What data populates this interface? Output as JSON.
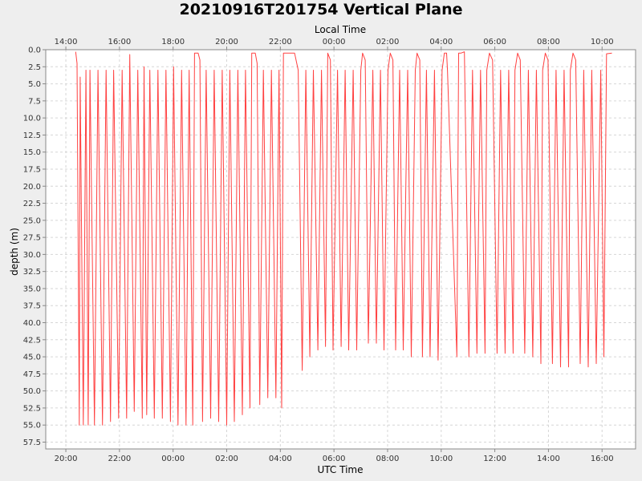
{
  "chart_data": {
    "type": "line",
    "title": "20210916T201754 Vertical Plane",
    "xlabel": "UTC Time",
    "x2label": "Local Time",
    "ylabel": "depth (m)",
    "xlim": [
      "2021-09-16T19:15",
      "2021-09-17T17:15"
    ],
    "ylim": [
      0,
      58.5
    ],
    "y_inverted": true,
    "grid": true,
    "x_ticks": [
      "20:00",
      "22:00",
      "00:00",
      "02:00",
      "04:00",
      "06:00",
      "08:00",
      "10:00",
      "12:00",
      "14:00",
      "16:00"
    ],
    "x2_ticks": [
      "14:00",
      "16:00",
      "18:00",
      "20:00",
      "22:00",
      "00:00",
      "02:00",
      "04:00",
      "06:00",
      "08:00",
      "10:00"
    ],
    "y_ticks": [
      "0.0",
      "2.5",
      "5.0",
      "7.5",
      "10.0",
      "12.5",
      "15.0",
      "17.5",
      "20.0",
      "22.5",
      "25.0",
      "27.5",
      "30.0",
      "32.5",
      "35.0",
      "37.5",
      "40.0",
      "42.5",
      "45.0",
      "47.5",
      "50.0",
      "52.5",
      "55.0",
      "57.5"
    ],
    "series": [
      {
        "color": "#ff4040",
        "x": [
          "2021-09-16T20:22",
          "2021-09-16T20:25",
          "2021-09-16T20:30",
          "2021-09-16T20:32",
          "2021-09-16T20:39",
          "2021-09-16T20:45",
          "2021-09-16T20:50",
          "2021-09-16T20:54",
          "2021-09-16T21:04",
          "2021-09-16T21:12",
          "2021-09-16T21:22",
          "2021-09-16T21:30",
          "2021-09-16T21:40",
          "2021-09-16T21:47",
          "2021-09-16T21:58",
          "2021-09-16T22:06",
          "2021-09-16T22:16",
          "2021-09-16T22:23",
          "2021-09-16T22:33",
          "2021-09-16T22:41",
          "2021-09-16T22:51",
          "2021-09-16T22:55",
          "2021-09-16T23:01",
          "2021-09-16T23:08",
          "2021-09-16T23:18",
          "2021-09-16T23:26",
          "2021-09-16T23:36",
          "2021-09-16T23:44",
          "2021-09-16T23:54",
          "2021-09-17T00:01",
          "2021-09-17T00:11",
          "2021-09-17T00:19",
          "2021-09-17T00:29",
          "2021-09-17T00:36",
          "2021-09-17T00:44",
          "2021-09-17T00:48",
          "2021-09-17T00:56",
          "2021-09-17T01:00",
          "2021-09-17T01:06",
          "2021-09-17T01:14",
          "2021-09-17T01:24",
          "2021-09-17T01:32",
          "2021-09-17T01:42",
          "2021-09-17T01:50",
          "2021-09-17T02:00",
          "2021-09-17T02:07",
          "2021-09-17T02:17",
          "2021-09-17T02:25",
          "2021-09-17T02:35",
          "2021-09-17T02:42",
          "2021-09-17T02:52",
          "2021-09-17T02:56",
          "2021-09-17T03:04",
          "2021-09-17T03:08",
          "2021-09-17T03:14",
          "2021-09-17T03:22",
          "2021-09-17T03:32",
          "2021-09-17T03:40",
          "2021-09-17T03:50",
          "2021-09-17T03:57",
          "2021-09-17T04:03",
          "2021-09-17T04:07",
          "2021-09-17T04:32",
          "2021-09-17T04:40",
          "2021-09-17T04:49",
          "2021-09-17T04:57",
          "2021-09-17T05:06",
          "2021-09-17T05:14",
          "2021-09-17T05:24",
          "2021-09-17T05:32",
          "2021-09-17T05:41",
          "2021-09-17T05:46",
          "2021-09-17T05:52",
          "2021-09-17T05:58",
          "2021-09-17T06:08",
          "2021-09-17T06:16",
          "2021-09-17T06:25",
          "2021-09-17T06:33",
          "2021-09-17T06:43",
          "2021-09-17T06:51",
          "2021-09-17T07:00",
          "2021-09-17T07:04",
          "2021-09-17T07:10",
          "2021-09-17T07:17",
          "2021-09-17T07:27",
          "2021-09-17T07:35",
          "2021-09-17T07:44",
          "2021-09-17T07:52",
          "2021-09-17T08:01",
          "2021-09-17T08:06",
          "2021-09-17T08:12",
          "2021-09-17T08:18",
          "2021-09-17T08:27",
          "2021-09-17T08:35",
          "2021-09-17T08:45",
          "2021-09-17T08:53",
          "2021-09-17T09:02",
          "2021-09-17T09:06",
          "2021-09-17T09:12",
          "2021-09-17T09:18",
          "2021-09-17T09:27",
          "2021-09-17T09:35",
          "2021-09-17T09:45",
          "2021-09-17T09:53",
          "2021-09-17T10:02",
          "2021-09-17T10:07",
          "2021-09-17T10:12",
          "2021-09-17T10:14",
          "2021-09-17T10:35",
          "2021-09-17T10:39",
          "2021-09-17T10:44",
          "2021-09-17T10:52",
          "2021-09-17T11:02",
          "2021-09-17T11:10",
          "2021-09-17T11:20",
          "2021-09-17T11:28",
          "2021-09-17T11:38",
          "2021-09-17T11:42",
          "2021-09-17T11:48",
          "2021-09-17T11:55",
          "2021-09-17T12:05",
          "2021-09-17T12:13",
          "2021-09-17T12:23",
          "2021-09-17T12:31",
          "2021-09-17T12:41",
          "2021-09-17T12:45",
          "2021-09-17T12:51",
          "2021-09-17T12:57",
          "2021-09-17T13:07",
          "2021-09-17T13:15",
          "2021-09-17T13:25",
          "2021-09-17T13:33",
          "2021-09-17T13:43",
          "2021-09-17T13:47",
          "2021-09-17T13:53",
          "2021-09-17T13:59",
          "2021-09-17T14:09",
          "2021-09-17T14:17",
          "2021-09-17T14:27",
          "2021-09-17T14:35",
          "2021-09-17T14:45",
          "2021-09-17T14:49",
          "2021-09-17T14:55",
          "2021-09-17T15:01",
          "2021-09-17T15:11",
          "2021-09-17T15:19",
          "2021-09-17T15:29",
          "2021-09-17T15:37",
          "2021-09-17T15:47",
          "2021-09-17T15:57",
          "2021-09-17T16:04",
          "2021-09-17T16:10",
          "2021-09-17T16:22"
        ],
        "y": [
          0.3,
          2.0,
          55.0,
          4.0,
          55.0,
          3.0,
          55.0,
          3.0,
          55.0,
          3.0,
          55.0,
          3.0,
          54.5,
          3.0,
          54.0,
          3.0,
          54.0,
          0.7,
          53.0,
          3.0,
          54.0,
          2.5,
          53.5,
          3.0,
          54.0,
          3.0,
          54.0,
          3.0,
          54.5,
          2.5,
          55.0,
          3.0,
          55.0,
          3.0,
          55.0,
          0.5,
          0.5,
          1.5,
          54.5,
          3.0,
          54.0,
          3.0,
          54.5,
          3.0,
          55.0,
          3.0,
          54.5,
          3.0,
          53.5,
          3.0,
          52.5,
          0.5,
          0.5,
          2.0,
          52.0,
          3.0,
          51.0,
          3.0,
          51.0,
          3.0,
          52.5,
          0.5,
          0.5,
          3.0,
          47.0,
          3.0,
          45.0,
          3.0,
          44.0,
          3.0,
          43.5,
          0.5,
          1.5,
          44.0,
          3.0,
          43.5,
          3.0,
          44.0,
          3.0,
          44.0,
          3.0,
          0.5,
          1.5,
          43.0,
          3.0,
          43.0,
          3.0,
          44.0,
          3.0,
          0.5,
          1.5,
          44.0,
          3.0,
          44.0,
          3.0,
          45.0,
          3.0,
          0.5,
          1.5,
          45.0,
          3.0,
          45.0,
          3.0,
          45.5,
          3.0,
          0.5,
          0.5,
          3.0,
          45.0,
          0.5,
          0.5,
          0.3,
          45.0,
          3.0,
          44.5,
          3.0,
          44.5,
          3.0,
          0.5,
          1.5,
          44.5,
          3.0,
          44.5,
          3.0,
          44.5,
          3.0,
          0.5,
          1.5,
          44.5,
          3.0,
          45.0,
          3.0,
          46.0,
          3.0,
          0.5,
          1.5,
          46.0,
          3.0,
          46.5,
          3.0,
          46.5,
          3.0,
          0.5,
          1.5,
          46.0,
          3.0,
          46.5,
          3.0,
          46.0,
          3.0,
          45.0,
          0.6,
          0.5
        ]
      }
    ]
  }
}
